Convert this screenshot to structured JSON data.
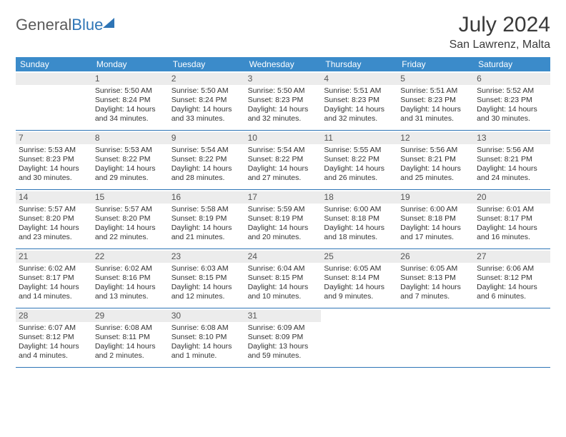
{
  "logo": {
    "text1": "General",
    "text2": "Blue"
  },
  "title": "July 2024",
  "location": "San Lawrenz, Malta",
  "dow": [
    "Sunday",
    "Monday",
    "Tuesday",
    "Wednesday",
    "Thursday",
    "Friday",
    "Saturday"
  ],
  "colors": {
    "header_bg": "#3b8bca",
    "border": "#2e75b6",
    "daynum_bg": "#ececec",
    "text": "#333333"
  },
  "weeks": [
    [
      {
        "n": "",
        "lines": []
      },
      {
        "n": "1",
        "lines": [
          "Sunrise: 5:50 AM",
          "Sunset: 8:24 PM",
          "Daylight: 14 hours and 34 minutes."
        ]
      },
      {
        "n": "2",
        "lines": [
          "Sunrise: 5:50 AM",
          "Sunset: 8:24 PM",
          "Daylight: 14 hours and 33 minutes."
        ]
      },
      {
        "n": "3",
        "lines": [
          "Sunrise: 5:50 AM",
          "Sunset: 8:23 PM",
          "Daylight: 14 hours and 32 minutes."
        ]
      },
      {
        "n": "4",
        "lines": [
          "Sunrise: 5:51 AM",
          "Sunset: 8:23 PM",
          "Daylight: 14 hours and 32 minutes."
        ]
      },
      {
        "n": "5",
        "lines": [
          "Sunrise: 5:51 AM",
          "Sunset: 8:23 PM",
          "Daylight: 14 hours and 31 minutes."
        ]
      },
      {
        "n": "6",
        "lines": [
          "Sunrise: 5:52 AM",
          "Sunset: 8:23 PM",
          "Daylight: 14 hours and 30 minutes."
        ]
      }
    ],
    [
      {
        "n": "7",
        "lines": [
          "Sunrise: 5:53 AM",
          "Sunset: 8:23 PM",
          "Daylight: 14 hours and 30 minutes."
        ]
      },
      {
        "n": "8",
        "lines": [
          "Sunrise: 5:53 AM",
          "Sunset: 8:22 PM",
          "Daylight: 14 hours and 29 minutes."
        ]
      },
      {
        "n": "9",
        "lines": [
          "Sunrise: 5:54 AM",
          "Sunset: 8:22 PM",
          "Daylight: 14 hours and 28 minutes."
        ]
      },
      {
        "n": "10",
        "lines": [
          "Sunrise: 5:54 AM",
          "Sunset: 8:22 PM",
          "Daylight: 14 hours and 27 minutes."
        ]
      },
      {
        "n": "11",
        "lines": [
          "Sunrise: 5:55 AM",
          "Sunset: 8:22 PM",
          "Daylight: 14 hours and 26 minutes."
        ]
      },
      {
        "n": "12",
        "lines": [
          "Sunrise: 5:56 AM",
          "Sunset: 8:21 PM",
          "Daylight: 14 hours and 25 minutes."
        ]
      },
      {
        "n": "13",
        "lines": [
          "Sunrise: 5:56 AM",
          "Sunset: 8:21 PM",
          "Daylight: 14 hours and 24 minutes."
        ]
      }
    ],
    [
      {
        "n": "14",
        "lines": [
          "Sunrise: 5:57 AM",
          "Sunset: 8:20 PM",
          "Daylight: 14 hours and 23 minutes."
        ]
      },
      {
        "n": "15",
        "lines": [
          "Sunrise: 5:57 AM",
          "Sunset: 8:20 PM",
          "Daylight: 14 hours and 22 minutes."
        ]
      },
      {
        "n": "16",
        "lines": [
          "Sunrise: 5:58 AM",
          "Sunset: 8:19 PM",
          "Daylight: 14 hours and 21 minutes."
        ]
      },
      {
        "n": "17",
        "lines": [
          "Sunrise: 5:59 AM",
          "Sunset: 8:19 PM",
          "Daylight: 14 hours and 20 minutes."
        ]
      },
      {
        "n": "18",
        "lines": [
          "Sunrise: 6:00 AM",
          "Sunset: 8:18 PM",
          "Daylight: 14 hours and 18 minutes."
        ]
      },
      {
        "n": "19",
        "lines": [
          "Sunrise: 6:00 AM",
          "Sunset: 8:18 PM",
          "Daylight: 14 hours and 17 minutes."
        ]
      },
      {
        "n": "20",
        "lines": [
          "Sunrise: 6:01 AM",
          "Sunset: 8:17 PM",
          "Daylight: 14 hours and 16 minutes."
        ]
      }
    ],
    [
      {
        "n": "21",
        "lines": [
          "Sunrise: 6:02 AM",
          "Sunset: 8:17 PM",
          "Daylight: 14 hours and 14 minutes."
        ]
      },
      {
        "n": "22",
        "lines": [
          "Sunrise: 6:02 AM",
          "Sunset: 8:16 PM",
          "Daylight: 14 hours and 13 minutes."
        ]
      },
      {
        "n": "23",
        "lines": [
          "Sunrise: 6:03 AM",
          "Sunset: 8:15 PM",
          "Daylight: 14 hours and 12 minutes."
        ]
      },
      {
        "n": "24",
        "lines": [
          "Sunrise: 6:04 AM",
          "Sunset: 8:15 PM",
          "Daylight: 14 hours and 10 minutes."
        ]
      },
      {
        "n": "25",
        "lines": [
          "Sunrise: 6:05 AM",
          "Sunset: 8:14 PM",
          "Daylight: 14 hours and 9 minutes."
        ]
      },
      {
        "n": "26",
        "lines": [
          "Sunrise: 6:05 AM",
          "Sunset: 8:13 PM",
          "Daylight: 14 hours and 7 minutes."
        ]
      },
      {
        "n": "27",
        "lines": [
          "Sunrise: 6:06 AM",
          "Sunset: 8:12 PM",
          "Daylight: 14 hours and 6 minutes."
        ]
      }
    ],
    [
      {
        "n": "28",
        "lines": [
          "Sunrise: 6:07 AM",
          "Sunset: 8:12 PM",
          "Daylight: 14 hours and 4 minutes."
        ]
      },
      {
        "n": "29",
        "lines": [
          "Sunrise: 6:08 AM",
          "Sunset: 8:11 PM",
          "Daylight: 14 hours and 2 minutes."
        ]
      },
      {
        "n": "30",
        "lines": [
          "Sunrise: 6:08 AM",
          "Sunset: 8:10 PM",
          "Daylight: 14 hours and 1 minute."
        ]
      },
      {
        "n": "31",
        "lines": [
          "Sunrise: 6:09 AM",
          "Sunset: 8:09 PM",
          "Daylight: 13 hours and 59 minutes."
        ]
      },
      {
        "n": "",
        "lines": []
      },
      {
        "n": "",
        "lines": []
      },
      {
        "n": "",
        "lines": []
      }
    ]
  ]
}
